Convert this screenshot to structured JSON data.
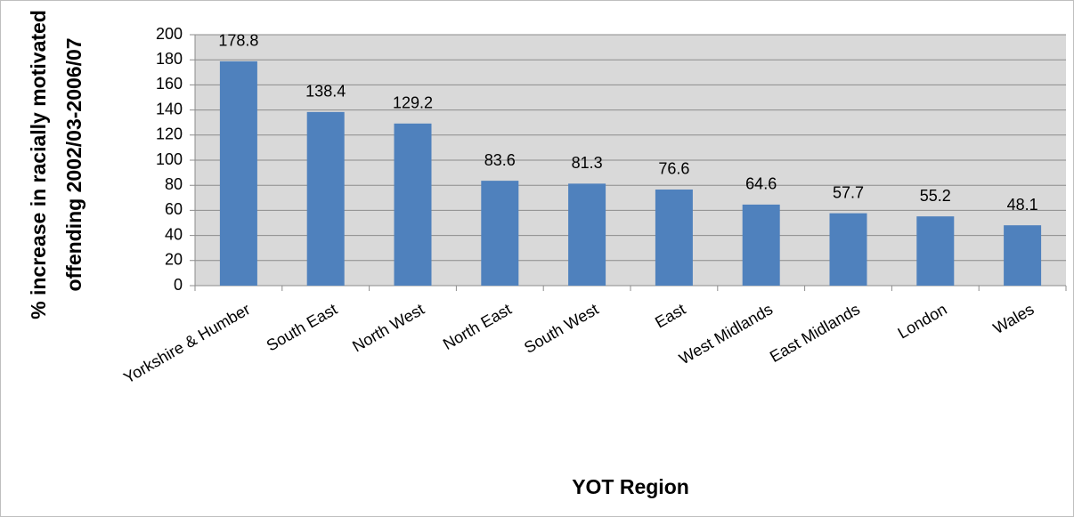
{
  "chart_data": {
    "type": "bar",
    "y_label": [
      "% increase in racially motivated",
      "offending 2002/03-2006/07"
    ],
    "x_label": "YOT Region",
    "categories": [
      "Yorkshire & Humber",
      "South East",
      "North West",
      "North East",
      "South West",
      "East",
      "West Midlands",
      "East Midlands",
      "London",
      "Wales"
    ],
    "values": [
      178.8,
      138.4,
      129.2,
      83.6,
      81.3,
      76.6,
      64.6,
      57.7,
      55.2,
      48.1
    ],
    "color": "#4f81bd",
    "ylim": [
      0,
      200
    ],
    "yticks": [
      0,
      20,
      40,
      60,
      80,
      100,
      120,
      140,
      160,
      180,
      200
    ],
    "grid": true
  }
}
